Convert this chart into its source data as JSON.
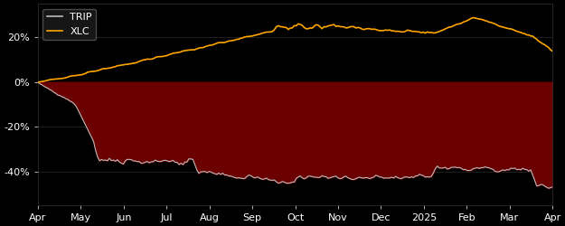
{
  "background_color": "#000000",
  "axes_background_color": "#000000",
  "fill_color": "#6B0000",
  "trip_color": "#BBBBBB",
  "xlc_color": "#FFA500",
  "legend_labels": [
    "TRIP",
    "XLC"
  ],
  "x_tick_labels": [
    "Apr",
    "May",
    "Jun",
    "Jul",
    "Aug",
    "Sep",
    "Oct",
    "Nov",
    "Dec",
    "2025",
    "Feb",
    "Mar",
    "Apr"
  ],
  "y_tick_labels": [
    "-40%",
    "-20%",
    "0%",
    "20%"
  ],
  "y_ticks": [
    -40,
    -20,
    0,
    20
  ],
  "ylim": [
    -55,
    35
  ],
  "n_points": 260
}
